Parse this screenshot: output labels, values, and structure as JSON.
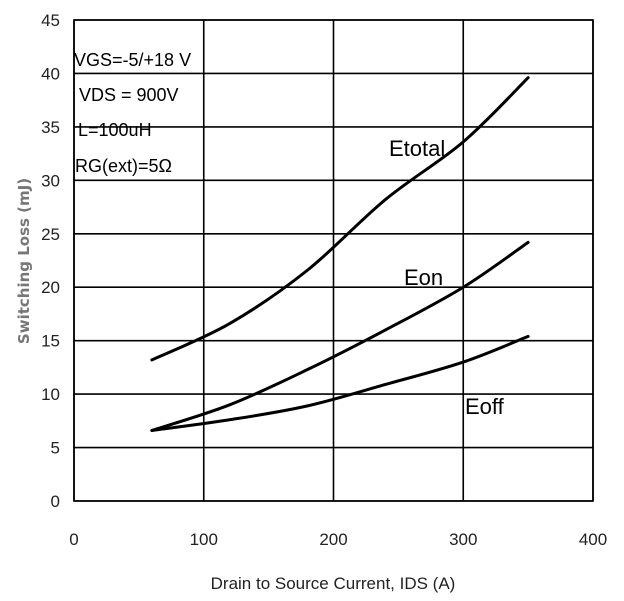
{
  "chart_data": {
    "type": "line",
    "title": "",
    "xlabel": "Drain to Source Current, IDS (A)",
    "ylabel": "Switching Loss (mJ)",
    "xlim": [
      0,
      400
    ],
    "ylim": [
      0,
      45
    ],
    "xticks": [
      "0",
      "100",
      "200",
      "300",
      "400"
    ],
    "yticks": [
      "0",
      "5",
      "10",
      "15",
      "20",
      "25",
      "30",
      "35",
      "40",
      "45"
    ],
    "grid": true,
    "annotations": [
      "VGS=-5/+18 V",
      "VDS = 900V",
      "L=100uH",
      "RG(ext)=5Ω"
    ],
    "series": [
      {
        "name": "Etotal",
        "x": [
          60,
          120,
          180,
          240,
          300,
          350
        ],
        "y": [
          13.2,
          16.6,
          21.6,
          28.2,
          33.6,
          39.6
        ]
      },
      {
        "name": "Eon",
        "x": [
          60,
          120,
          180,
          240,
          300,
          350
        ],
        "y": [
          6.6,
          9.0,
          12.3,
          16.0,
          20.0,
          24.2
        ]
      },
      {
        "name": "Eoff",
        "x": [
          60,
          120,
          180,
          240,
          300,
          350
        ],
        "y": [
          6.6,
          7.6,
          8.9,
          10.9,
          13.0,
          15.4
        ]
      }
    ]
  }
}
